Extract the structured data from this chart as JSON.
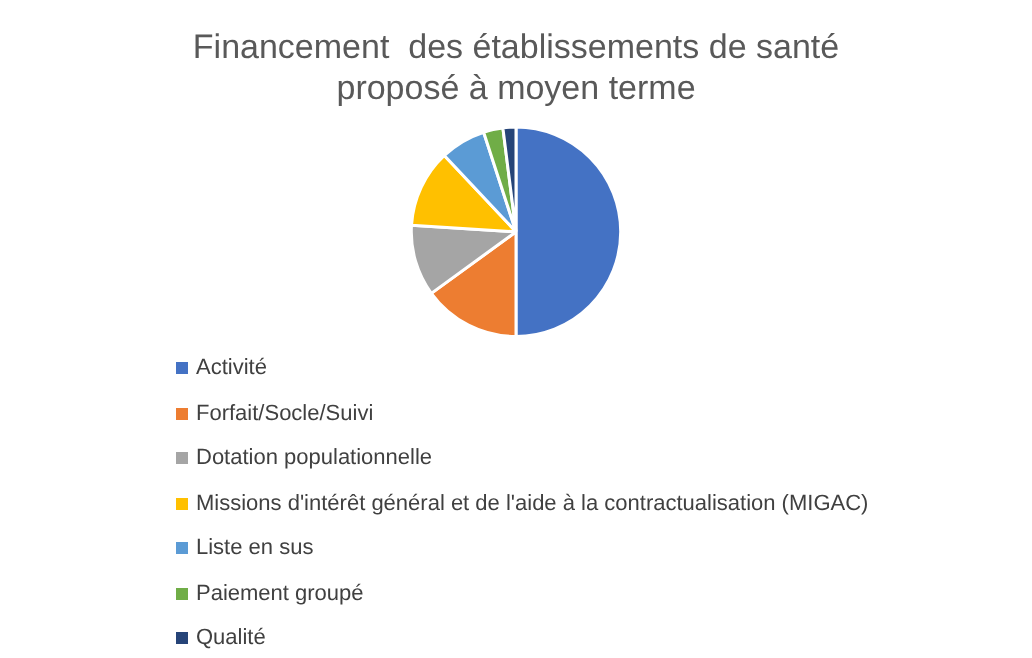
{
  "chart_data": {
    "type": "pie",
    "title": "Financement  des établissements de santé proposé à moyen terme",
    "categories": [
      "Activité",
      "Forfait/Socle/Suivi",
      "Dotation populationnelle",
      "Missions d'intérêt général et de l'aide à la contractualisation (MIGAC)",
      "Liste en sus",
      "Paiement groupé",
      "Qualité"
    ],
    "values": [
      50,
      15,
      11,
      12,
      7,
      3,
      2
    ],
    "colors": [
      "#4472c4",
      "#ed7d31",
      "#a5a5a5",
      "#ffc000",
      "#5b9bd5",
      "#70ad47",
      "#264478"
    ],
    "legend": "bottom"
  }
}
